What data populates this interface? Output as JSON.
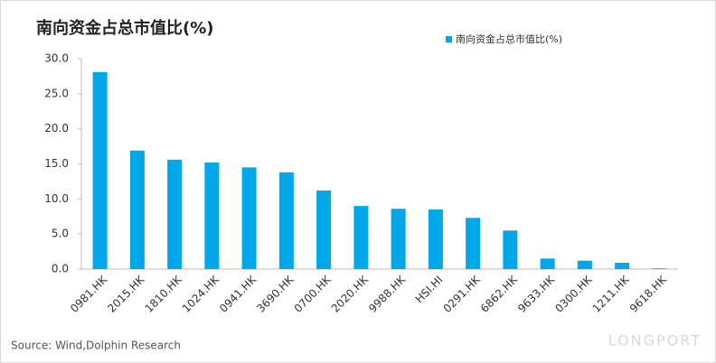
{
  "chart_data": {
    "type": "bar",
    "title": "南向资金占总市值比(%)",
    "categories": [
      "0981.HK",
      "2015.HK",
      "1810.HK",
      "1024.HK",
      "0941.HK",
      "3690.HK",
      "0700.HK",
      "2020.HK",
      "9988.HK",
      "HSI.HI",
      "0291.HK",
      "6862.HK",
      "9633.HK",
      "0300.HK",
      "1211.HK",
      "9618.HK"
    ],
    "series": [
      {
        "name": "南向资金占总市值比(%)",
        "color": "#00a8ea",
        "values": [
          28.1,
          16.9,
          15.6,
          15.2,
          14.5,
          13.8,
          11.2,
          9.0,
          8.6,
          8.5,
          7.3,
          5.5,
          1.5,
          1.2,
          0.9,
          0.1
        ]
      }
    ],
    "ylim": [
      0,
      30
    ],
    "yticks": [
      {
        "value": 0,
        "label": "0.0"
      },
      {
        "value": 5,
        "label": "5.0"
      },
      {
        "value": 10,
        "label": "10.0"
      },
      {
        "value": 15,
        "label": "15.0"
      },
      {
        "value": 20,
        "label": "20.0"
      },
      {
        "value": 25,
        "label": "25.0"
      },
      {
        "value": 30,
        "label": "30.0"
      }
    ],
    "legend": "top-right",
    "source": "Source: Wind,Dolphin Research",
    "watermark": "LONGPORT"
  }
}
